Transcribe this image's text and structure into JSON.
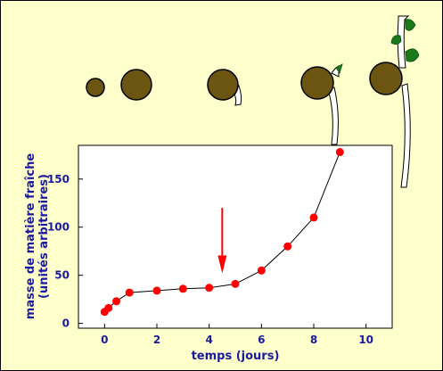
{
  "chart_data": {
    "type": "line",
    "title": "",
    "xlabel": "temps (jours)",
    "ylabel_lines": [
      "masse de matière fraîche",
      "(unités arbitraires)"
    ],
    "xlim": [
      -1,
      11
    ],
    "ylim": [
      -5,
      185
    ],
    "x_ticks": [
      0,
      2,
      4,
      6,
      8,
      10
    ],
    "y_ticks": [
      0,
      50,
      100,
      150
    ],
    "grid": false,
    "series": [
      {
        "x": [
          0,
          0.15,
          0.45,
          0.95,
          2,
          3,
          4,
          5,
          6,
          7,
          8,
          9
        ],
        "y": [
          12,
          16,
          23,
          32,
          34,
          36,
          37,
          41,
          55,
          80,
          110,
          178
        ],
        "marker_color": "#ff0000",
        "line_color": "#000000"
      }
    ],
    "annotations": [
      {
        "type": "arrow",
        "x": 4.5,
        "y_from": 120,
        "y_to": 52,
        "color": "#ff0000"
      }
    ]
  },
  "illustration": {
    "description_icons": [
      "seed-icon",
      "germinating-seed-icon",
      "seedling-icon"
    ],
    "seed_color": "#6b5510",
    "leaf_color": "#1a7a1a",
    "background_color": "#ffffcc"
  }
}
